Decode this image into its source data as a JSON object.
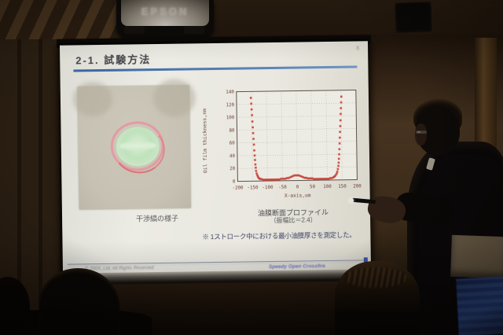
{
  "projector": {
    "brand": "EPSON"
  },
  "slide": {
    "title": "2-1. 試験方法",
    "page_number": "8",
    "photo_caption": "干渉縞の様子",
    "chart_caption": "油膜断面プロファイル",
    "chart_caption_sub": "（振幅比＝2.4）",
    "note": "※ 1ストローク中における最小油膜厚さを測定した。",
    "footer_left": "© 200X, Ltd. All Rights Reserved",
    "footer_right": "Speedy Open Crossfire",
    "accent_color": "#38659f",
    "footer_accent_color": "#3a55b0"
  },
  "chart_data": {
    "type": "scatter",
    "title": "油膜断面プロファイル",
    "xlabel": "X-axis,um",
    "ylabel": "Oil film thickness,nm",
    "xlim": [
      -200,
      200
    ],
    "ylim": [
      0,
      140
    ],
    "xticks": [
      -200,
      -150,
      -100,
      -50,
      0,
      50,
      100,
      150,
      200
    ],
    "yticks": [
      0,
      20,
      40,
      60,
      80,
      100,
      120,
      140
    ],
    "grid": true,
    "legend": "none",
    "marker_color": "#c7423a",
    "axis_color": "#6b4036",
    "points": [
      [
        -152,
        130
      ],
      [
        -151,
        121
      ],
      [
        -150,
        112
      ],
      [
        -149,
        103
      ],
      [
        -148,
        93
      ],
      [
        -147,
        84
      ],
      [
        -146,
        75
      ],
      [
        -145,
        66
      ],
      [
        -144,
        57
      ],
      [
        -143,
        48
      ],
      [
        -142,
        40
      ],
      [
        -141,
        33
      ],
      [
        -140,
        26
      ],
      [
        -139,
        21
      ],
      [
        -138,
        16
      ],
      [
        -136,
        12
      ],
      [
        -134,
        9
      ],
      [
        -132,
        7
      ],
      [
        -130,
        5
      ],
      [
        -127,
        4
      ],
      [
        -124,
        3
      ],
      [
        -120,
        3
      ],
      [
        -115,
        2
      ],
      [
        -110,
        2
      ],
      [
        -105,
        2
      ],
      [
        -100,
        2
      ],
      [
        -95,
        2
      ],
      [
        -90,
        2
      ],
      [
        -85,
        2
      ],
      [
        -80,
        2
      ],
      [
        -75,
        2
      ],
      [
        -70,
        2
      ],
      [
        -65,
        2
      ],
      [
        -60,
        2
      ],
      [
        -55,
        3
      ],
      [
        -50,
        3
      ],
      [
        -45,
        3
      ],
      [
        -40,
        3
      ],
      [
        -35,
        4
      ],
      [
        -30,
        4
      ],
      [
        -25,
        5
      ],
      [
        -20,
        6
      ],
      [
        -15,
        7
      ],
      [
        -10,
        8
      ],
      [
        -5,
        8
      ],
      [
        0,
        8
      ],
      [
        5,
        8
      ],
      [
        10,
        7
      ],
      [
        15,
        6
      ],
      [
        20,
        5
      ],
      [
        25,
        4
      ],
      [
        30,
        4
      ],
      [
        35,
        3
      ],
      [
        40,
        3
      ],
      [
        45,
        3
      ],
      [
        50,
        3
      ],
      [
        55,
        2
      ],
      [
        60,
        2
      ],
      [
        65,
        2
      ],
      [
        70,
        2
      ],
      [
        75,
        2
      ],
      [
        80,
        2
      ],
      [
        85,
        2
      ],
      [
        90,
        2
      ],
      [
        95,
        2
      ],
      [
        100,
        2
      ],
      [
        105,
        2
      ],
      [
        110,
        3
      ],
      [
        115,
        3
      ],
      [
        120,
        4
      ],
      [
        123,
        5
      ],
      [
        126,
        6
      ],
      [
        129,
        8
      ],
      [
        132,
        10
      ],
      [
        134,
        13
      ],
      [
        136,
        17
      ],
      [
        138,
        22
      ],
      [
        139,
        27
      ],
      [
        140,
        33
      ],
      [
        141,
        40
      ],
      [
        142,
        48
      ],
      [
        143,
        57
      ],
      [
        144,
        66
      ],
      [
        145,
        75
      ],
      [
        146,
        84
      ],
      [
        147,
        93
      ],
      [
        148,
        103
      ],
      [
        149,
        112
      ],
      [
        150,
        121
      ],
      [
        151,
        130
      ]
    ]
  }
}
